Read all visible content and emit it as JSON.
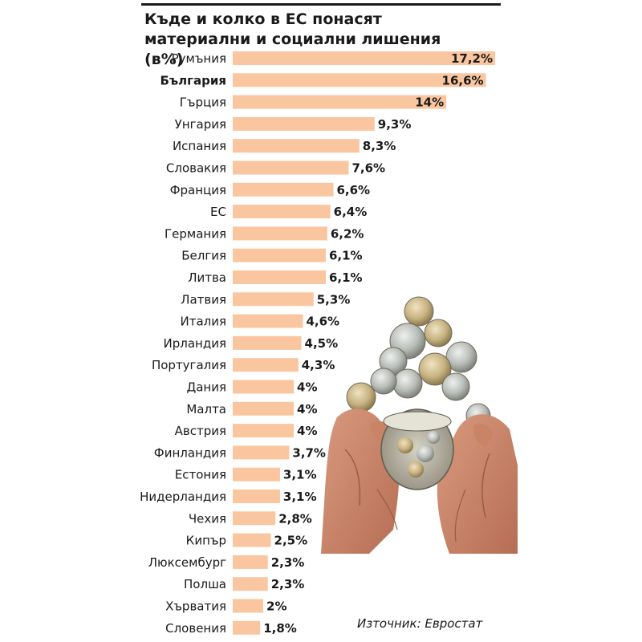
{
  "title": "Къде и колко в ЕС понасят материални и социални лишения (в%)",
  "source": "Източник: Евростат",
  "colors": {
    "bar": "#f9c6a0",
    "text": "#1a1a1a"
  },
  "chart_data": {
    "type": "bar",
    "orientation": "horizontal",
    "title": "Къде и колко в ЕС понасят материални и социални лишения (в%)",
    "highlighted_category": "България",
    "categories": [
      "Румъния",
      "България",
      "Гърция",
      "Унгария",
      "Испания",
      "Словакия",
      "Франция",
      "ЕС",
      "Германия",
      "Белгия",
      "Литва",
      "Латвия",
      "Италия",
      "Ирландия",
      "Португалия",
      "Дания",
      "Малта",
      "Австрия",
      "Финландия",
      "Естония",
      "Нидерландия",
      "Чехия",
      "Кипър",
      "Люксембург",
      "Полша",
      "Хърватия",
      "Словения"
    ],
    "values": [
      17.2,
      16.6,
      14,
      9.3,
      8.3,
      7.6,
      6.6,
      6.4,
      6.2,
      6.1,
      6.1,
      5.3,
      4.6,
      4.5,
      4.3,
      4,
      4,
      4,
      3.7,
      3.1,
      3.1,
      2.8,
      2.5,
      2.3,
      2.3,
      2,
      1.8
    ],
    "value_labels": [
      "17,2%",
      "16,6%",
      "14%",
      "9,3%",
      "8,3%",
      "7,6%",
      "6,6%",
      "6,4%",
      "6,2%",
      "6,1%",
      "6,1%",
      "5,3%",
      "4,6%",
      "4,5%",
      "4,3%",
      "4%",
      "4%",
      "4%",
      "3,7%",
      "3,1%",
      "3,1%",
      "2,8%",
      "2,5%",
      "2,3%",
      "2,3%",
      "2%",
      "1,8%"
    ]
  }
}
